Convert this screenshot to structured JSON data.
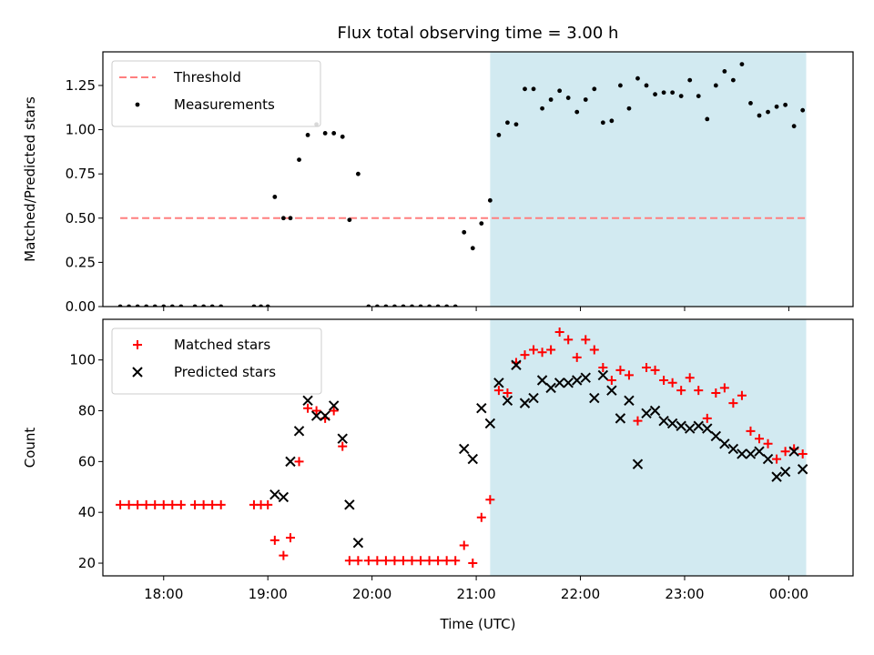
{
  "figure": {
    "title": "Flux total observing time = 3.00 h",
    "xlabel": "Time (UTC)",
    "x_tick_labels": [
      "18:00",
      "19:00",
      "20:00",
      "21:00",
      "22:00",
      "23:00",
      "00:00"
    ]
  },
  "chart_data": [
    {
      "type": "scatter",
      "ylabel": "Matched/Predicted stars",
      "xlim": [
        "17:25",
        "00:37"
      ],
      "ylim": [
        0,
        1.44
      ],
      "y_tick_labels": [
        "0.00",
        "0.25",
        "0.50",
        "0.75",
        "1.00",
        "1.25"
      ],
      "shaded_region": {
        "x_start": "21:08",
        "x_end": "00:10",
        "color": "#add8e6"
      },
      "legend": {
        "position": "top-left"
      },
      "threshold": {
        "name": "Threshold",
        "value": 0.5,
        "x_start": "17:35",
        "x_end": "00:10",
        "color": "#ff7f7f"
      },
      "series": [
        {
          "name": "Measurements",
          "color": "#000000",
          "marker": "dot",
          "points": [
            [
              "17:35",
              0
            ],
            [
              "17:40",
              0
            ],
            [
              "17:45",
              0
            ],
            [
              "17:50",
              0
            ],
            [
              "17:55",
              0
            ],
            [
              "18:00",
              0
            ],
            [
              "18:05",
              0
            ],
            [
              "18:10",
              0
            ],
            [
              "18:18",
              0
            ],
            [
              "18:23",
              0
            ],
            [
              "18:28",
              0
            ],
            [
              "18:33",
              0
            ],
            [
              "18:52",
              0
            ],
            [
              "18:56",
              0
            ],
            [
              "19:00",
              0
            ],
            [
              "19:04",
              0.62
            ],
            [
              "19:09",
              0.5
            ],
            [
              "19:13",
              0.5
            ],
            [
              "19:18",
              0.83
            ],
            [
              "19:23",
              0.97
            ],
            [
              "19:28",
              1.03
            ],
            [
              "19:33",
              0.98
            ],
            [
              "19:38",
              0.98
            ],
            [
              "19:43",
              0.96
            ],
            [
              "19:47",
              0.49
            ],
            [
              "19:52",
              0.75
            ],
            [
              "19:58",
              0
            ],
            [
              "20:03",
              0
            ],
            [
              "20:08",
              0
            ],
            [
              "20:13",
              0
            ],
            [
              "20:18",
              0
            ],
            [
              "20:23",
              0
            ],
            [
              "20:28",
              0
            ],
            [
              "20:33",
              0
            ],
            [
              "20:38",
              0
            ],
            [
              "20:43",
              0
            ],
            [
              "20:48",
              0
            ],
            [
              "20:53",
              0.42
            ],
            [
              "20:58",
              0.33
            ],
            [
              "21:03",
              0.47
            ],
            [
              "21:08",
              0.6
            ],
            [
              "21:13",
              0.97
            ],
            [
              "21:18",
              1.04
            ],
            [
              "21:23",
              1.03
            ],
            [
              "21:28",
              1.23
            ],
            [
              "21:33",
              1.23
            ],
            [
              "21:38",
              1.12
            ],
            [
              "21:43",
              1.17
            ],
            [
              "21:48",
              1.22
            ],
            [
              "21:53",
              1.18
            ],
            [
              "21:58",
              1.1
            ],
            [
              "22:03",
              1.17
            ],
            [
              "22:08",
              1.23
            ],
            [
              "22:13",
              1.04
            ],
            [
              "22:18",
              1.05
            ],
            [
              "22:23",
              1.25
            ],
            [
              "22:28",
              1.12
            ],
            [
              "22:33",
              1.29
            ],
            [
              "22:38",
              1.25
            ],
            [
              "22:43",
              1.2
            ],
            [
              "22:48",
              1.21
            ],
            [
              "22:53",
              1.21
            ],
            [
              "22:58",
              1.19
            ],
            [
              "23:03",
              1.28
            ],
            [
              "23:08",
              1.19
            ],
            [
              "23:13",
              1.06
            ],
            [
              "23:18",
              1.25
            ],
            [
              "23:23",
              1.33
            ],
            [
              "23:28",
              1.28
            ],
            [
              "23:33",
              1.37
            ],
            [
              "23:38",
              1.15
            ],
            [
              "23:43",
              1.08
            ],
            [
              "23:48",
              1.1
            ],
            [
              "23:53",
              1.13
            ],
            [
              "23:58",
              1.14
            ],
            [
              "00:03",
              1.02
            ],
            [
              "00:08",
              1.11
            ]
          ]
        }
      ]
    },
    {
      "type": "scatter",
      "ylabel": "Count",
      "xlim": [
        "17:25",
        "00:37"
      ],
      "ylim": [
        15,
        116
      ],
      "y_tick_labels": [
        "20",
        "40",
        "60",
        "80",
        "100"
      ],
      "shaded_region": {
        "x_start": "21:08",
        "x_end": "00:10",
        "color": "#add8e6"
      },
      "legend": {
        "position": "top-left"
      },
      "series": [
        {
          "name": "Matched stars",
          "color": "#ff0000",
          "marker": "plus",
          "points": [
            [
              "17:35",
              43
            ],
            [
              "17:40",
              43
            ],
            [
              "17:45",
              43
            ],
            [
              "17:50",
              43
            ],
            [
              "17:55",
              43
            ],
            [
              "18:00",
              43
            ],
            [
              "18:05",
              43
            ],
            [
              "18:10",
              43
            ],
            [
              "18:18",
              43
            ],
            [
              "18:23",
              43
            ],
            [
              "18:28",
              43
            ],
            [
              "18:33",
              43
            ],
            [
              "18:52",
              43
            ],
            [
              "18:56",
              43
            ],
            [
              "19:00",
              43
            ],
            [
              "19:04",
              29
            ],
            [
              "19:09",
              23
            ],
            [
              "19:13",
              30
            ],
            [
              "19:18",
              60
            ],
            [
              "19:23",
              81
            ],
            [
              "19:28",
              80
            ],
            [
              "19:33",
              77
            ],
            [
              "19:38",
              80
            ],
            [
              "19:43",
              66
            ],
            [
              "19:47",
              21
            ],
            [
              "19:52",
              21
            ],
            [
              "19:58",
              21
            ],
            [
              "20:03",
              21
            ],
            [
              "20:08",
              21
            ],
            [
              "20:13",
              21
            ],
            [
              "20:18",
              21
            ],
            [
              "20:23",
              21
            ],
            [
              "20:28",
              21
            ],
            [
              "20:33",
              21
            ],
            [
              "20:38",
              21
            ],
            [
              "20:43",
              21
            ],
            [
              "20:48",
              21
            ],
            [
              "20:53",
              27
            ],
            [
              "20:58",
              20
            ],
            [
              "21:03",
              38
            ],
            [
              "21:08",
              45
            ],
            [
              "21:13",
              88
            ],
            [
              "21:18",
              87
            ],
            [
              "21:23",
              99
            ],
            [
              "21:28",
              102
            ],
            [
              "21:33",
              104
            ],
            [
              "21:38",
              103
            ],
            [
              "21:43",
              104
            ],
            [
              "21:48",
              111
            ],
            [
              "21:53",
              108
            ],
            [
              "21:58",
              101
            ],
            [
              "22:03",
              108
            ],
            [
              "22:08",
              104
            ],
            [
              "22:13",
              97
            ],
            [
              "22:18",
              92
            ],
            [
              "22:23",
              96
            ],
            [
              "22:28",
              94
            ],
            [
              "22:33",
              76
            ],
            [
              "22:38",
              97
            ],
            [
              "22:43",
              96
            ],
            [
              "22:48",
              92
            ],
            [
              "22:53",
              91
            ],
            [
              "22:58",
              88
            ],
            [
              "23:03",
              93
            ],
            [
              "23:08",
              88
            ],
            [
              "23:13",
              77
            ],
            [
              "23:18",
              87
            ],
            [
              "23:23",
              89
            ],
            [
              "23:28",
              83
            ],
            [
              "23:33",
              86
            ],
            [
              "23:38",
              72
            ],
            [
              "23:43",
              69
            ],
            [
              "23:48",
              67
            ],
            [
              "23:53",
              61
            ],
            [
              "23:58",
              64
            ],
            [
              "00:03",
              65
            ],
            [
              "00:08",
              63
            ]
          ]
        },
        {
          "name": "Predicted stars",
          "color": "#000000",
          "marker": "x",
          "points": [
            [
              "19:04",
              47
            ],
            [
              "19:09",
              46
            ],
            [
              "19:13",
              60
            ],
            [
              "19:18",
              72
            ],
            [
              "19:23",
              84
            ],
            [
              "19:28",
              78
            ],
            [
              "19:33",
              78
            ],
            [
              "19:38",
              82
            ],
            [
              "19:43",
              69
            ],
            [
              "19:47",
              43
            ],
            [
              "19:52",
              28
            ],
            [
              "20:53",
              65
            ],
            [
              "20:58",
              61
            ],
            [
              "21:03",
              81
            ],
            [
              "21:08",
              75
            ],
            [
              "21:13",
              91
            ],
            [
              "21:18",
              84
            ],
            [
              "21:23",
              98
            ],
            [
              "21:28",
              83
            ],
            [
              "21:33",
              85
            ],
            [
              "21:38",
              92
            ],
            [
              "21:43",
              89
            ],
            [
              "21:48",
              91
            ],
            [
              "21:53",
              91
            ],
            [
              "21:58",
              92
            ],
            [
              "22:03",
              93
            ],
            [
              "22:08",
              85
            ],
            [
              "22:13",
              94
            ],
            [
              "22:18",
              88
            ],
            [
              "22:23",
              77
            ],
            [
              "22:28",
              84
            ],
            [
              "22:33",
              59
            ],
            [
              "22:38",
              79
            ],
            [
              "22:43",
              80
            ],
            [
              "22:48",
              76
            ],
            [
              "22:53",
              75
            ],
            [
              "22:58",
              74
            ],
            [
              "23:03",
              73
            ],
            [
              "23:08",
              74
            ],
            [
              "23:13",
              73
            ],
            [
              "23:18",
              70
            ],
            [
              "23:23",
              67
            ],
            [
              "23:28",
              65
            ],
            [
              "23:33",
              63
            ],
            [
              "23:38",
              63
            ],
            [
              "23:43",
              64
            ],
            [
              "23:48",
              61
            ],
            [
              "23:53",
              54
            ],
            [
              "23:58",
              56
            ],
            [
              "00:03",
              64
            ],
            [
              "00:08",
              57
            ]
          ]
        }
      ]
    }
  ]
}
